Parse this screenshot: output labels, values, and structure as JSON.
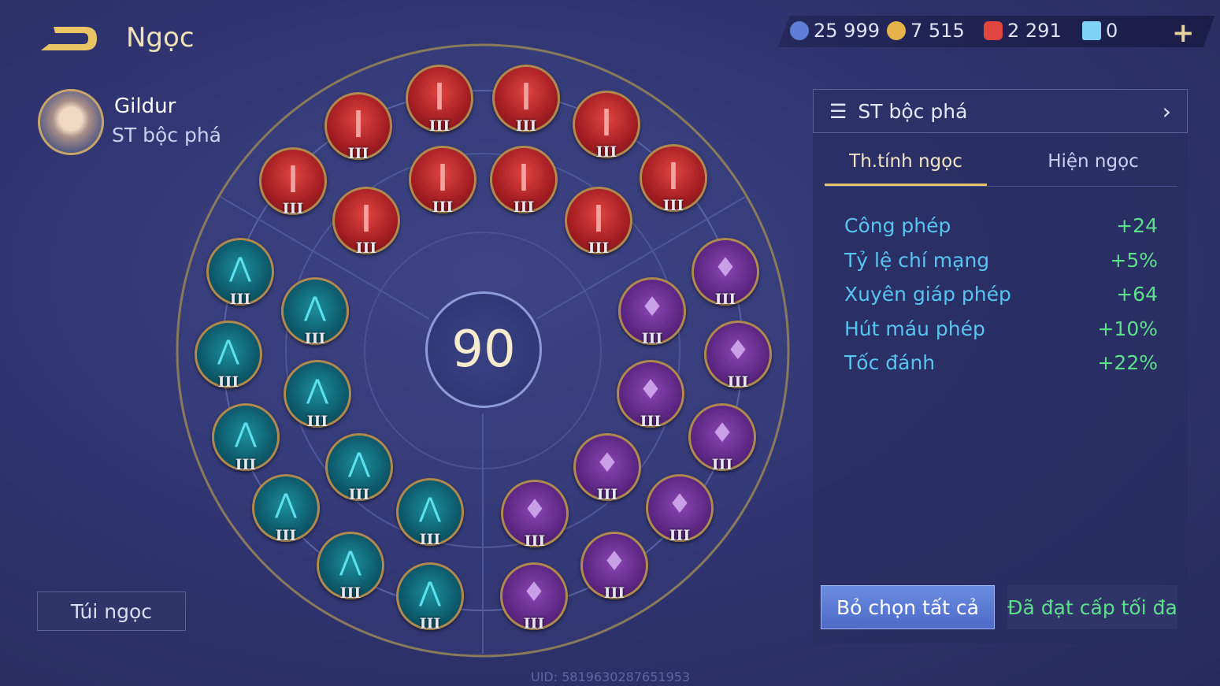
{
  "header": {
    "title": "Ngọc",
    "back_icon": "back-arrow-icon"
  },
  "hero": {
    "name": "Gildur",
    "build": "ST bộc phá"
  },
  "currencies": [
    {
      "icon": "blue-coin-icon",
      "value": "25 999",
      "color": "#5f7fd6"
    },
    {
      "icon": "gold-coin-icon",
      "value": "7 515",
      "color": "#e6b44a"
    },
    {
      "icon": "red-gem-icon",
      "value": "2 291",
      "color": "#e0463f"
    },
    {
      "icon": "card-icon",
      "value": "0",
      "color": "#7fd3f5"
    }
  ],
  "plus_label": "+",
  "bag_label": "Túi ngọc",
  "level": "90",
  "gems": {
    "red": {
      "count": 10,
      "tier": "III",
      "color": "#c2282c"
    },
    "blue": {
      "count": 10,
      "tier": "III",
      "color": "#0e6a7c"
    },
    "purple": {
      "count": 10,
      "tier": "III",
      "color": "#6a2e94"
    }
  },
  "panel": {
    "build_select": "ST bộc phá",
    "tabs": [
      "Th.tính ngọc",
      "Hiện ngọc"
    ],
    "active_tab": 0,
    "stats": [
      {
        "name": "Công phép",
        "value": "+24"
      },
      {
        "name": "Tỷ lệ chí mạng",
        "value": "+5%"
      },
      {
        "name": "Xuyên giáp phép",
        "value": "+64"
      },
      {
        "name": "Hút máu phép",
        "value": "+10%"
      },
      {
        "name": "Tốc đánh",
        "value": "+22%"
      }
    ],
    "clear_button": "Bỏ chọn tất cả",
    "max_button": "Đã đạt cấp tối đa"
  },
  "uid": "UID: 5819630287651953"
}
